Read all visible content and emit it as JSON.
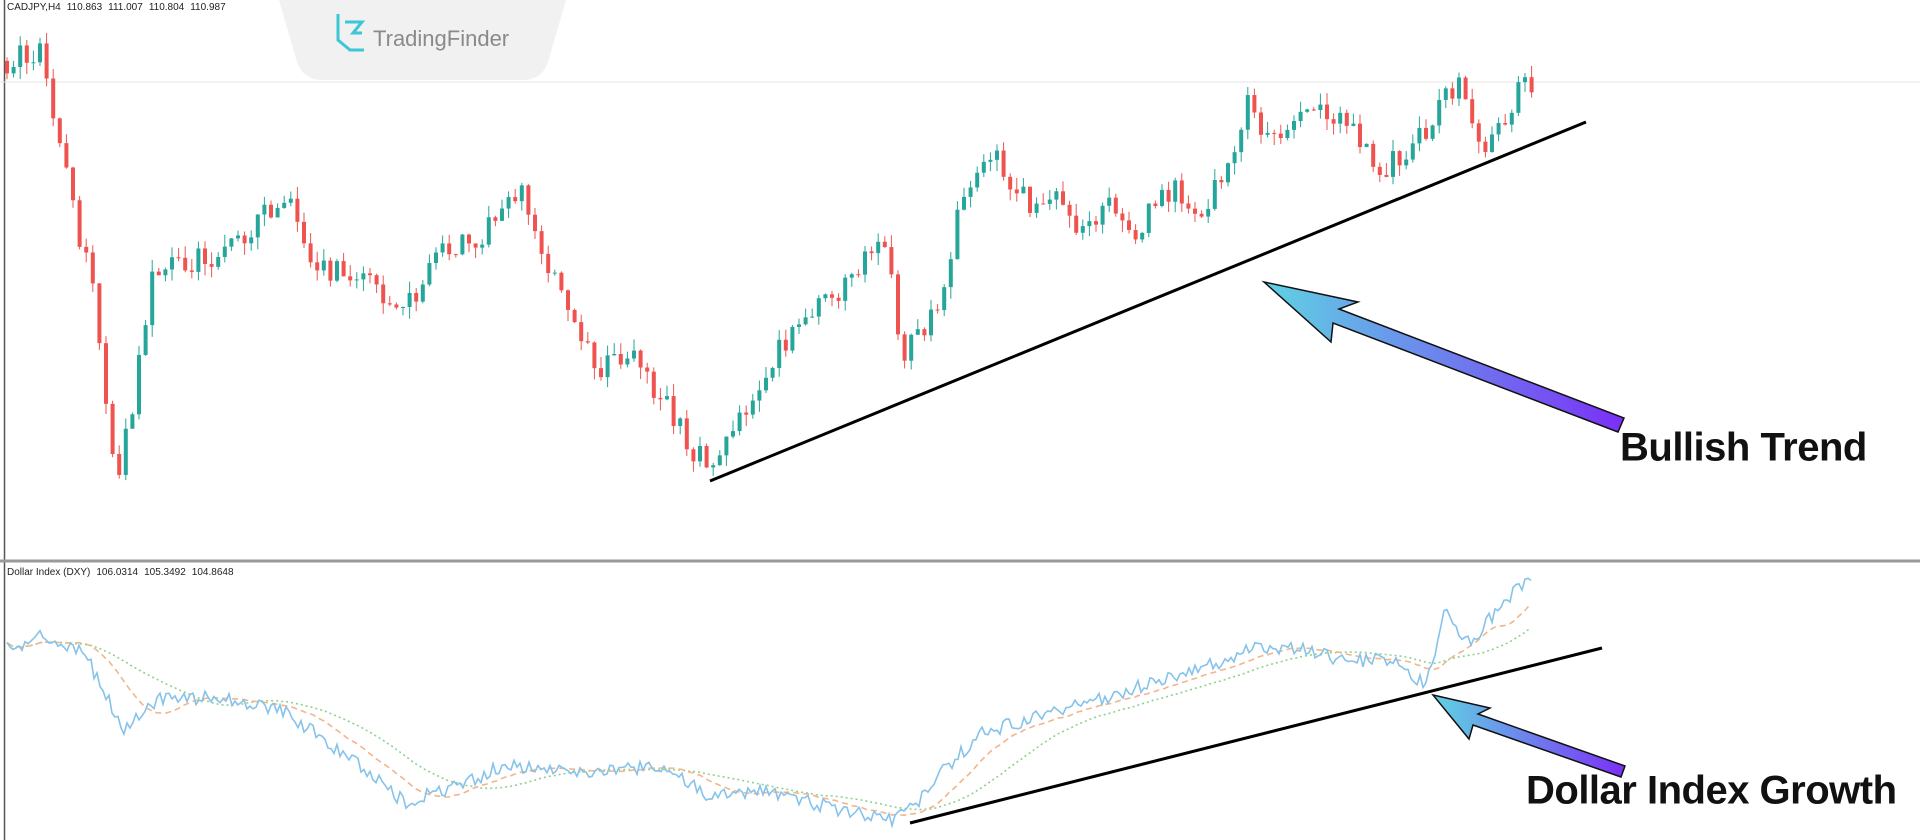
{
  "price_pane": {
    "symbol": "CADJPY,H4",
    "ohlc": [
      110.863,
      111.007,
      110.804,
      110.987
    ]
  },
  "logo": {
    "text": "TradingFinder"
  },
  "indicator_pane": {
    "name": "Dollar Index (DXY)",
    "values": [
      106.0314,
      105.3492,
      104.8648
    ]
  },
  "annotations": [
    "Bullish Trend",
    "Dollar Index Growth"
  ]
}
